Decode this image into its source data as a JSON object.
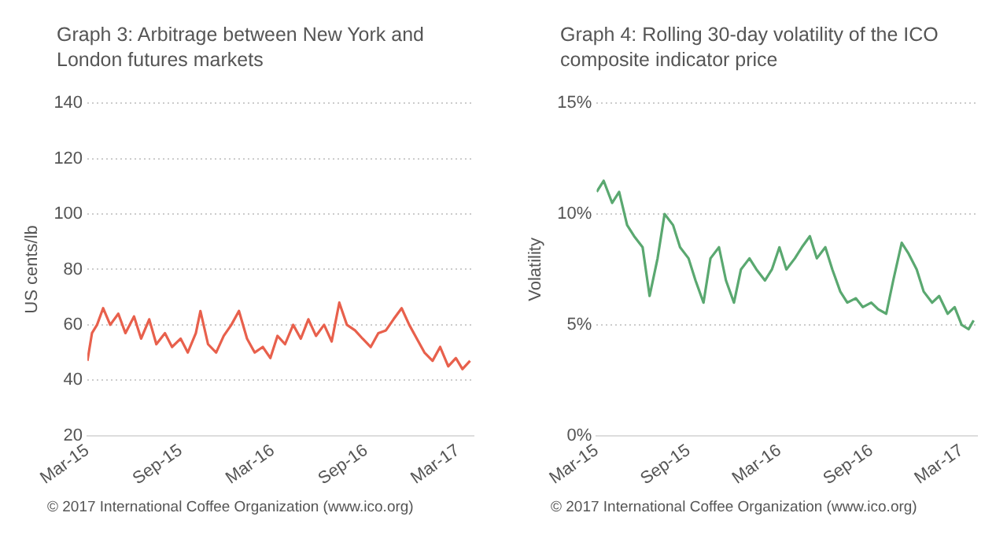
{
  "chart_data": [
    {
      "type": "line",
      "title": "Graph 3:   Arbitrage between New York and London futures markets",
      "ylabel": "US cents/lb",
      "annotations": [
        "© 2017 International Coffee Organization (www.ico.org)"
      ],
      "x": [
        "2015-03-01",
        "2015-03-10",
        "2015-03-20",
        "2015-04-01",
        "2015-04-15",
        "2015-05-01",
        "2015-05-15",
        "2015-06-01",
        "2015-06-15",
        "2015-07-01",
        "2015-07-15",
        "2015-08-01",
        "2015-08-15",
        "2015-09-01",
        "2015-09-15",
        "2015-10-01",
        "2015-10-10",
        "2015-10-25",
        "2015-11-10",
        "2015-11-25",
        "2015-12-10",
        "2015-12-25",
        "2016-01-10",
        "2016-01-25",
        "2016-02-10",
        "2016-02-25",
        "2016-03-10",
        "2016-03-25",
        "2016-04-10",
        "2016-04-25",
        "2016-05-10",
        "2016-05-25",
        "2016-06-10",
        "2016-06-25",
        "2016-07-10",
        "2016-07-25",
        "2016-08-10",
        "2016-08-25",
        "2016-09-10",
        "2016-09-25",
        "2016-10-10",
        "2016-10-25",
        "2016-11-10",
        "2016-11-25",
        "2016-12-10",
        "2016-12-25",
        "2017-01-10",
        "2017-01-25",
        "2017-02-10",
        "2017-02-25",
        "2017-03-10",
        "2017-03-25"
      ],
      "series": [
        {
          "color": "#e8604c",
          "values": [
            47,
            57,
            60,
            66,
            60,
            64,
            57,
            63,
            55,
            62,
            53,
            57,
            52,
            55,
            50,
            57,
            65,
            53,
            50,
            56,
            60,
            65,
            55,
            50,
            52,
            48,
            56,
            53,
            60,
            55,
            62,
            56,
            60,
            54,
            68,
            60,
            58,
            55,
            52,
            57,
            58,
            62,
            66,
            60,
            55,
            50,
            47,
            52,
            45,
            48,
            44,
            47
          ]
        }
      ],
      "xlim": [
        "2015-03-01",
        "2017-04-01"
      ],
      "xticks": [
        {
          "value": "2015-03-01",
          "label": "Mar-15"
        },
        {
          "value": "2015-09-01",
          "label": "Sep-15"
        },
        {
          "value": "2016-03-01",
          "label": "Mar-16"
        },
        {
          "value": "2016-09-01",
          "label": "Sep-16"
        },
        {
          "value": "2017-03-01",
          "label": "Mar-17"
        }
      ],
      "ylim": [
        20,
        140
      ],
      "yticks": [
        20,
        40,
        60,
        80,
        100,
        120,
        140
      ],
      "grid": "y",
      "legend": false,
      "marker": "none"
    },
    {
      "type": "line",
      "title": "Graph 4:   Rolling 30-day volatility of the ICO composite indicator price",
      "ylabel": "Volatility",
      "annotations": [
        "© 2017 International Coffee Organization (www.ico.org)"
      ],
      "x": [
        "2015-03-01",
        "2015-03-15",
        "2015-04-01",
        "2015-04-15",
        "2015-05-01",
        "2015-05-15",
        "2015-06-01",
        "2015-06-15",
        "2015-07-01",
        "2015-07-15",
        "2015-08-01",
        "2015-08-15",
        "2015-09-01",
        "2015-09-15",
        "2015-10-01",
        "2015-10-15",
        "2015-11-01",
        "2015-11-15",
        "2015-12-01",
        "2015-12-15",
        "2016-01-01",
        "2016-01-15",
        "2016-02-01",
        "2016-02-15",
        "2016-03-01",
        "2016-03-15",
        "2016-04-01",
        "2016-04-15",
        "2016-05-01",
        "2016-05-15",
        "2016-06-01",
        "2016-06-15",
        "2016-07-01",
        "2016-07-15",
        "2016-08-01",
        "2016-08-15",
        "2016-09-01",
        "2016-09-15",
        "2016-10-01",
        "2016-10-15",
        "2016-11-01",
        "2016-11-15",
        "2016-12-01",
        "2016-12-15",
        "2017-01-01",
        "2017-01-15",
        "2017-02-01",
        "2017-02-15",
        "2017-03-01",
        "2017-03-15",
        "2017-03-25"
      ],
      "series": [
        {
          "color": "#5aa870",
          "values": [
            11,
            11.5,
            10.5,
            11,
            9.5,
            9,
            8.5,
            6.3,
            8,
            10,
            9.5,
            8.5,
            8,
            7,
            6,
            8,
            8.5,
            7,
            6,
            7.5,
            8,
            7.5,
            7,
            7.5,
            8.5,
            7.5,
            8,
            8.5,
            9,
            8,
            8.5,
            7.5,
            6.5,
            6,
            6.2,
            5.8,
            6,
            5.7,
            5.5,
            7,
            8.7,
            8.2,
            7.5,
            6.5,
            6,
            6.3,
            5.5,
            5.8,
            5,
            4.8,
            5.2
          ]
        }
      ],
      "xlim": [
        "2015-03-01",
        "2017-04-01"
      ],
      "xticks": [
        {
          "value": "2015-03-01",
          "label": "Mar-15"
        },
        {
          "value": "2015-09-01",
          "label": "Sep-15"
        },
        {
          "value": "2016-03-01",
          "label": "Mar-16"
        },
        {
          "value": "2016-09-01",
          "label": "Sep-16"
        },
        {
          "value": "2017-03-01",
          "label": "Mar-17"
        }
      ],
      "ylim": [
        0,
        15
      ],
      "yticks": [
        {
          "value": 0,
          "label": "0%"
        },
        {
          "value": 5,
          "label": "5%"
        },
        {
          "value": 10,
          "label": "10%"
        },
        {
          "value": 15,
          "label": "15%"
        }
      ],
      "grid": "y",
      "legend": false,
      "marker": "none"
    }
  ]
}
